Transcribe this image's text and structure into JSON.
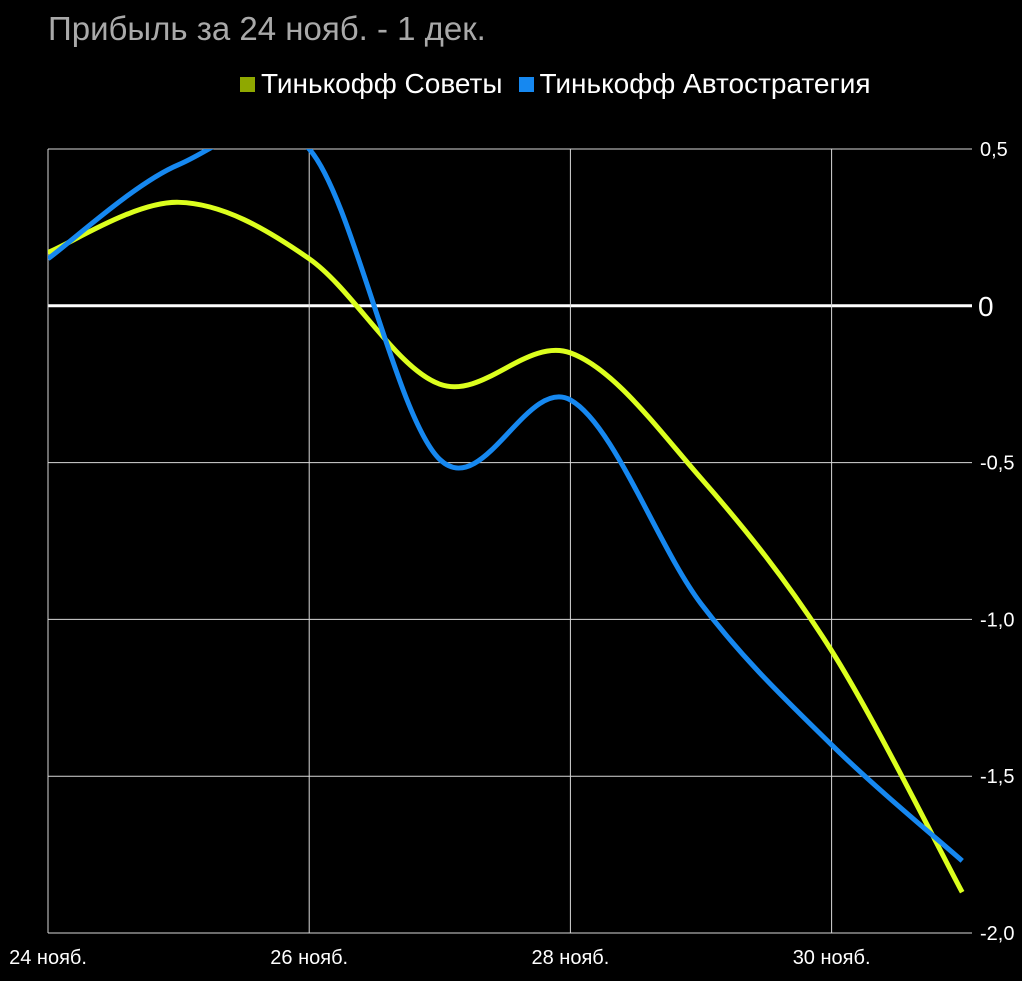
{
  "chart_data": {
    "type": "line",
    "title": "Прибыль за 24 нояб. - 1 дек.",
    "x": [
      "24 нояб.",
      "25 нояб.",
      "26 нояб.",
      "27 нояб.",
      "28 нояб.",
      "29 нояб.",
      "30 нояб.",
      "1 дек."
    ],
    "x_tick_labels": [
      "24 нояб.",
      "26 нояб.",
      "28 нояб.",
      "30 нояб."
    ],
    "y_tick_labels": [
      "0,5",
      "0",
      "-0,5",
      "-1,0",
      "-1,5",
      "-2,0"
    ],
    "ylim": [
      -2.0,
      0.5
    ],
    "grid": true,
    "legend_position": "top",
    "series": [
      {
        "name": "Тинькофф Советы",
        "color": "#dcff1e",
        "legend_color": "#8fa800",
        "values": [
          0.17,
          0.33,
          0.15,
          -0.25,
          -0.15,
          -0.55,
          -1.1,
          -1.87
        ]
      },
      {
        "name": "Тинькофф Автостратегия",
        "color": "#1688f0",
        "legend_color": "#1688f0",
        "values": [
          0.15,
          0.45,
          0.5,
          -0.49,
          -0.3,
          -0.95,
          -1.4,
          -1.77
        ]
      }
    ]
  }
}
